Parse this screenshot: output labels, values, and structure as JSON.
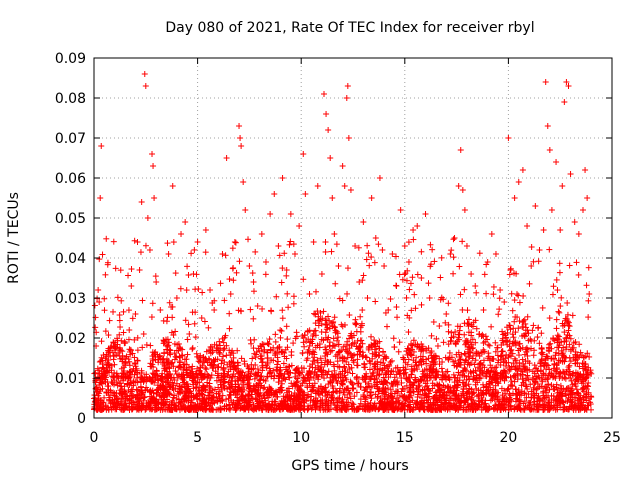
{
  "chart_data": {
    "type": "scatter",
    "title": "Day 080 of 2021, Rate Of TEC Index for receiver rbyl",
    "xlabel": "GPS time / hours",
    "ylabel": "ROTI / TECUs",
    "xlim": [
      0,
      25
    ],
    "ylim": [
      0,
      0.09
    ],
    "xticks": [
      0,
      5,
      10,
      15,
      20,
      25
    ],
    "xtick_labels": [
      "0",
      "5",
      "10",
      "15",
      "20",
      "25"
    ],
    "yticks": [
      0,
      0.01,
      0.02,
      0.03,
      0.04,
      0.05,
      0.06,
      0.07,
      0.08,
      0.09
    ],
    "ytick_labels": [
      "0",
      "0.01",
      "0.02",
      "0.03",
      "0.04",
      "0.05",
      "0.06",
      "0.07",
      "0.08",
      "0.09"
    ],
    "grid": true,
    "marker": "+",
    "color": "#ff0000",
    "series": [
      {
        "name": "ROTI",
        "points": [
          [
            0.05,
            0.005
          ],
          [
            0.1,
            0.018
          ],
          [
            0.2,
            0.032
          ],
          [
            0.25,
            0.029
          ],
          [
            0.35,
            0.068
          ],
          [
            0.3,
            0.055
          ],
          [
            0.5,
            0.012
          ],
          [
            0.7,
            0.008
          ],
          [
            0.9,
            0.004
          ],
          [
            1.1,
            0.009
          ],
          [
            1.3,
            0.006
          ],
          [
            1.5,
            0.015
          ],
          [
            1.7,
            0.022
          ],
          [
            1.8,
            0.033
          ],
          [
            2.0,
            0.026
          ],
          [
            2.1,
            0.044
          ],
          [
            2.2,
            0.037
          ],
          [
            2.3,
            0.054
          ],
          [
            2.4,
            0.021
          ],
          [
            2.45,
            0.086
          ],
          [
            2.5,
            0.083
          ],
          [
            2.6,
            0.05
          ],
          [
            2.7,
            0.042
          ],
          [
            2.8,
            0.066
          ],
          [
            2.85,
            0.063
          ],
          [
            2.9,
            0.055
          ],
          [
            3.0,
            0.034
          ],
          [
            3.2,
            0.027
          ],
          [
            3.4,
            0.019
          ],
          [
            3.6,
            0.041
          ],
          [
            3.8,
            0.058
          ],
          [
            4.0,
            0.03
          ],
          [
            4.2,
            0.046
          ],
          [
            4.4,
            0.049
          ],
          [
            4.6,
            0.021
          ],
          [
            4.8,
            0.036
          ],
          [
            5.0,
            0.044
          ],
          [
            5.2,
            0.025
          ],
          [
            5.4,
            0.047
          ],
          [
            5.6,
            0.032
          ],
          [
            5.8,
            0.027
          ],
          [
            6.0,
            0.017
          ],
          [
            6.2,
            0.041
          ],
          [
            6.4,
            0.065
          ],
          [
            6.6,
            0.031
          ],
          [
            6.8,
            0.044
          ],
          [
            7.0,
            0.073
          ],
          [
            7.05,
            0.07
          ],
          [
            7.1,
            0.068
          ],
          [
            7.2,
            0.059
          ],
          [
            7.3,
            0.052
          ],
          [
            7.5,
            0.038
          ],
          [
            7.7,
            0.034
          ],
          [
            7.9,
            0.028
          ],
          [
            8.1,
            0.046
          ],
          [
            8.3,
            0.039
          ],
          [
            8.5,
            0.051
          ],
          [
            8.7,
            0.056
          ],
          [
            8.9,
            0.043
          ],
          [
            9.1,
            0.06
          ],
          [
            9.3,
            0.037
          ],
          [
            9.5,
            0.051
          ],
          [
            9.7,
            0.041
          ],
          [
            9.9,
            0.048
          ],
          [
            10.1,
            0.066
          ],
          [
            10.2,
            0.056
          ],
          [
            10.4,
            0.031
          ],
          [
            10.6,
            0.044
          ],
          [
            10.8,
            0.058
          ],
          [
            11.0,
            0.036
          ],
          [
            11.1,
            0.081
          ],
          [
            11.2,
            0.076
          ],
          [
            11.3,
            0.072
          ],
          [
            11.4,
            0.065
          ],
          [
            11.5,
            0.055
          ],
          [
            11.6,
            0.046
          ],
          [
            11.8,
            0.038
          ],
          [
            12.0,
            0.063
          ],
          [
            12.1,
            0.058
          ],
          [
            12.2,
            0.08
          ],
          [
            12.25,
            0.083
          ],
          [
            12.3,
            0.07
          ],
          [
            12.4,
            0.057
          ],
          [
            12.6,
            0.043
          ],
          [
            12.8,
            0.034
          ],
          [
            13.0,
            0.049
          ],
          [
            13.2,
            0.03
          ],
          [
            13.4,
            0.055
          ],
          [
            13.6,
            0.045
          ],
          [
            13.8,
            0.06
          ],
          [
            14.0,
            0.038
          ],
          [
            14.2,
            0.027
          ],
          [
            14.4,
            0.041
          ],
          [
            14.6,
            0.033
          ],
          [
            14.8,
            0.052
          ],
          [
            15.0,
            0.043
          ],
          [
            15.2,
            0.039
          ],
          [
            15.4,
            0.047
          ],
          [
            15.6,
            0.048
          ],
          [
            15.8,
            0.035
          ],
          [
            16.0,
            0.051
          ],
          [
            16.2,
            0.03
          ],
          [
            16.4,
            0.024
          ],
          [
            16.6,
            0.018
          ],
          [
            16.8,
            0.014
          ],
          [
            17.0,
            0.026
          ],
          [
            17.2,
            0.041
          ],
          [
            17.4,
            0.045
          ],
          [
            17.6,
            0.058
          ],
          [
            17.7,
            0.067
          ],
          [
            17.8,
            0.057
          ],
          [
            17.9,
            0.052
          ],
          [
            18.0,
            0.043
          ],
          [
            18.2,
            0.036
          ],
          [
            18.4,
            0.033
          ],
          [
            18.6,
            0.021
          ],
          [
            18.8,
            0.027
          ],
          [
            19.0,
            0.039
          ],
          [
            19.2,
            0.046
          ],
          [
            19.4,
            0.041
          ],
          [
            19.6,
            0.032
          ],
          [
            19.8,
            0.029
          ],
          [
            20.0,
            0.07
          ],
          [
            20.1,
            0.037
          ],
          [
            20.3,
            0.055
          ],
          [
            20.5,
            0.059
          ],
          [
            20.7,
            0.062
          ],
          [
            20.9,
            0.048
          ],
          [
            21.1,
            0.038
          ],
          [
            21.3,
            0.053
          ],
          [
            21.5,
            0.042
          ],
          [
            21.7,
            0.047
          ],
          [
            21.8,
            0.084
          ],
          [
            21.9,
            0.073
          ],
          [
            22.0,
            0.067
          ],
          [
            22.1,
            0.052
          ],
          [
            22.3,
            0.064
          ],
          [
            22.5,
            0.047
          ],
          [
            22.6,
            0.058
          ],
          [
            22.7,
            0.079
          ],
          [
            22.8,
            0.084
          ],
          [
            22.9,
            0.083
          ],
          [
            23.0,
            0.061
          ],
          [
            23.2,
            0.049
          ],
          [
            23.4,
            0.046
          ],
          [
            23.6,
            0.052
          ],
          [
            23.7,
            0.062
          ],
          [
            23.8,
            0.055
          ],
          [
            23.9,
            0.031
          ]
        ]
      }
    ],
    "background_cloud": {
      "description_note": "dense band of ROTI samples",
      "typical_range": [
        0.002,
        0.02
      ]
    }
  }
}
